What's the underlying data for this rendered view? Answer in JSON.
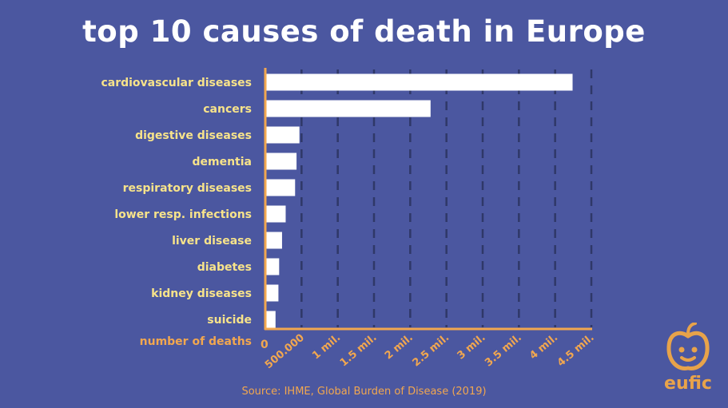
{
  "chart_data": {
    "type": "bar",
    "orientation": "horizontal",
    "title": "top 10 causes of death in Europe",
    "xlabel": "number of deaths",
    "ylabel": "",
    "categories": [
      "cardiovascular diseases",
      "cancers",
      "digestive diseases",
      "dementia",
      "respiratory diseases",
      "lower resp. infections",
      "liver disease",
      "diabetes",
      "kidney diseases",
      "suicide"
    ],
    "values": [
      4230000,
      2270000,
      460000,
      420000,
      400000,
      270000,
      220000,
      180000,
      170000,
      130000
    ],
    "xlim": [
      0,
      4500000
    ],
    "x_ticks": [
      0,
      500000,
      1000000,
      1500000,
      2000000,
      2500000,
      3000000,
      3500000,
      4000000,
      4500000
    ],
    "x_tick_labels": [
      "0",
      "500.000",
      "1 mil.",
      "1.5 mil.",
      "2 mil.",
      "2.5 mil.",
      "3 mil.",
      "3.5 mil.",
      "4 mil.",
      "4.5 mil."
    ],
    "grid": "vertical dashed",
    "colors": {
      "background": "#4b57a0",
      "bar": "#ffffff",
      "category_label": "#f7e38a",
      "axis": "#f2a74f",
      "grid": "#2f3868"
    }
  },
  "source": "Source: IHME, Global Burden of Disease (2019)",
  "logo": {
    "text": "eufic",
    "icon": "apple-face-icon",
    "color": "#e8a34a"
  }
}
